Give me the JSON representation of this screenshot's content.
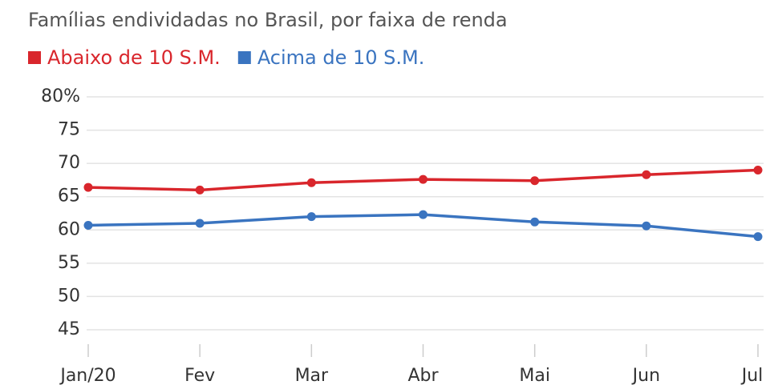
{
  "chart_data": {
    "type": "line",
    "title": "Famílias endividadas no Brasil, por faixa de renda",
    "categories": [
      "Jan/20",
      "Fev",
      "Mar",
      "Abr",
      "Mai",
      "Jun",
      "Jul"
    ],
    "series": [
      {
        "name": "Abaixo de 10 S.M.",
        "color": "#d9262c",
        "values": [
          66.4,
          66.0,
          67.1,
          67.6,
          67.4,
          68.3,
          69.0
        ]
      },
      {
        "name": "Acima de 10 S.M.",
        "color": "#3a74c0",
        "values": [
          60.7,
          61.0,
          62.0,
          62.3,
          61.2,
          60.6,
          59.0
        ]
      }
    ],
    "ylim": [
      42,
      80
    ],
    "yticks": [
      45,
      50,
      55,
      60,
      65,
      70,
      75,
      {
        "value": 80,
        "label": "80%"
      }
    ],
    "grid": true
  }
}
